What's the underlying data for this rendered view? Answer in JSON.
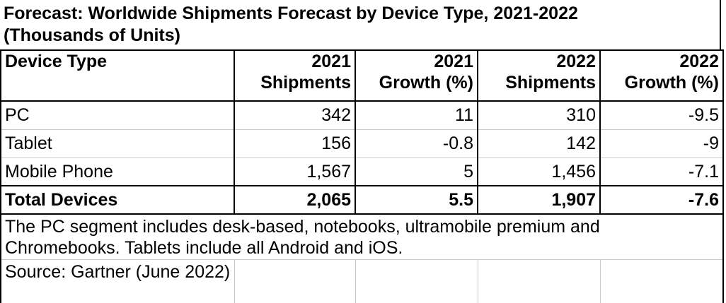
{
  "title": {
    "line1": "Forecast: Worldwide Shipments Forecast by Device Type, 2021-2022",
    "line2": "(Thousands of Units)"
  },
  "headers": [
    [
      "Device Type"
    ],
    [
      "2021",
      "Shipments"
    ],
    [
      "2021",
      "Growth (%)"
    ],
    [
      "2022",
      "Shipments"
    ],
    [
      "2022",
      "Growth (%)"
    ]
  ],
  "rows": [
    [
      "PC",
      "342",
      "11",
      "310",
      "-9.5"
    ],
    [
      "Tablet",
      "156",
      "-0.8",
      "142",
      "-9"
    ],
    [
      "Mobile Phone",
      "1,567",
      "5",
      "1,456",
      "-7.1"
    ]
  ],
  "total": [
    "Total Devices",
    "2,065",
    "5.5",
    "1,907",
    "-7.6"
  ],
  "note": "The PC segment includes desk-based, notebooks, ultramobile premium and Chromebooks. Tablets include all Android and iOS.",
  "source": "Source: Gartner (June 2022)"
}
